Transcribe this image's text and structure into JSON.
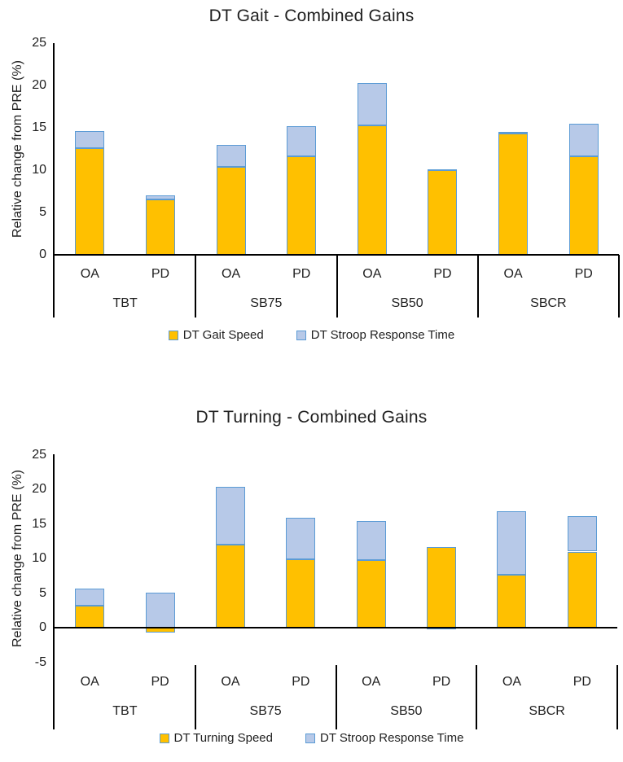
{
  "figure": {
    "description": "Two stacked bar charts of relative combined gains from PRE"
  },
  "chart_data": [
    {
      "type": "bar",
      "stacked": true,
      "title": "DT Gait - Combined Gains",
      "ylabel": "Relative change from PRE (%)",
      "ylim": [
        0,
        25
      ],
      "yticks": [
        25,
        20,
        15,
        10,
        5,
        0
      ],
      "grid": false,
      "legend_position": "bottom",
      "groups": [
        "TBT",
        "SB75",
        "SB50",
        "SBCR"
      ],
      "categories": [
        "OA",
        "PD",
        "OA",
        "PD",
        "OA",
        "PD",
        "OA",
        "PD"
      ],
      "series": [
        {
          "name": "DT Gait Speed",
          "color": "#FFC000",
          "values": [
            12.6,
            6.5,
            10.4,
            11.6,
            15.3,
            10.0,
            14.3,
            11.6
          ]
        },
        {
          "name": "DT Stroop Response Time",
          "color": "#B7C9E8",
          "values": [
            2.0,
            0.5,
            2.6,
            3.6,
            5.0,
            0.1,
            0.2,
            3.9
          ]
        }
      ],
      "colors": {
        "bar_border": "#5B9BD5",
        "axis": "#000000"
      }
    },
    {
      "type": "bar",
      "stacked": true,
      "title": "DT Turning - Combined Gains",
      "ylabel": "Relative change from PRE (%)",
      "ylim": [
        -5,
        25
      ],
      "yticks": [
        25,
        20,
        15,
        10,
        5,
        0,
        -5
      ],
      "grid": false,
      "legend_position": "bottom",
      "groups": [
        "TBT",
        "SB75",
        "SB50",
        "SBCR"
      ],
      "categories": [
        "OA",
        "PD",
        "OA",
        "PD",
        "OA",
        "PD",
        "OA",
        "PD"
      ],
      "series": [
        {
          "name": "DT Turning Speed",
          "color": "#FFC000",
          "values": [
            3.2,
            -0.7,
            12.0,
            9.9,
            9.8,
            11.7,
            7.7,
            11.0
          ]
        },
        {
          "name": "DT Stroop Response Time",
          "color": "#B7C9E8",
          "values": [
            2.5,
            5.1,
            8.4,
            6.0,
            5.6,
            -0.2,
            9.1,
            5.1
          ]
        }
      ],
      "colors": {
        "bar_border": "#5B9BD5",
        "axis": "#000000"
      }
    }
  ]
}
